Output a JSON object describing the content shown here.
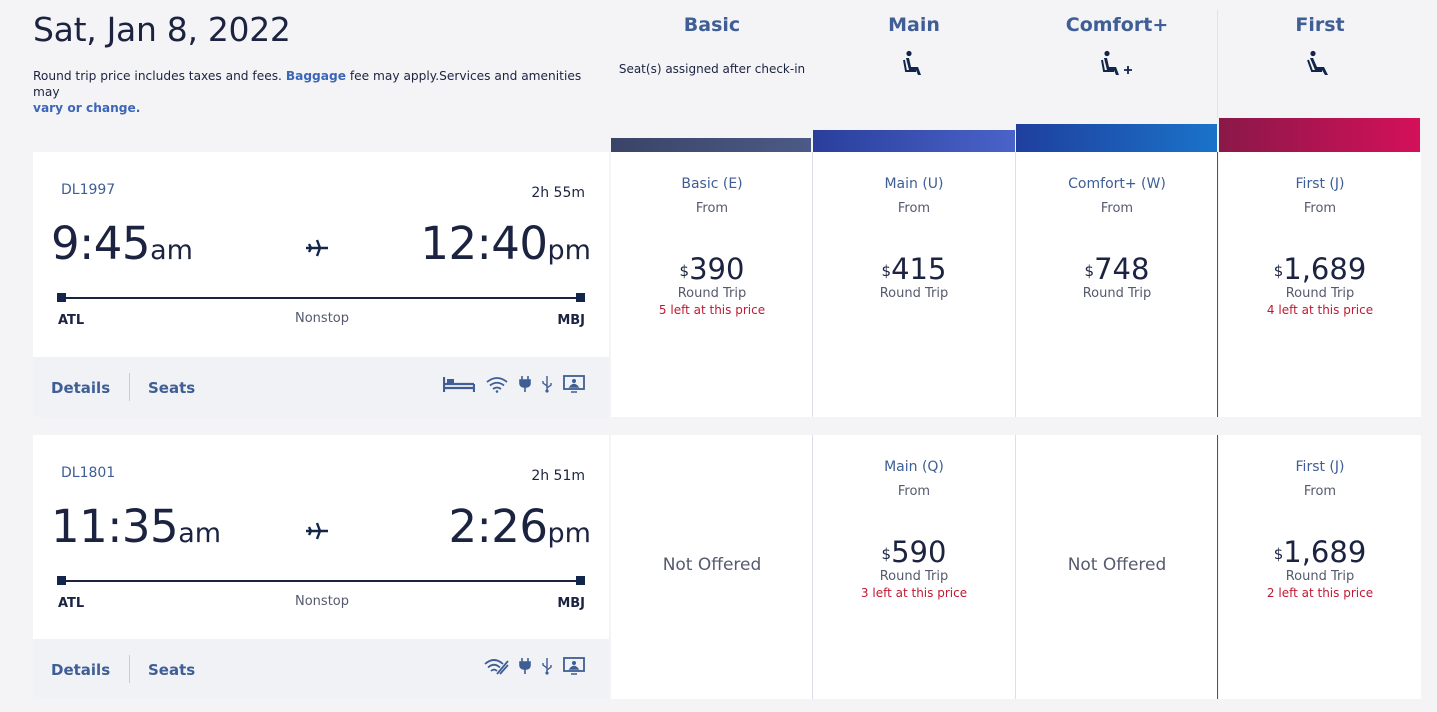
{
  "header": {
    "date": "Sat, Jan 8, 2022",
    "info_text_1": "Round trip price includes taxes and fees.",
    "baggage_link": "Baggage",
    "info_text_2": "fee may apply.",
    "info_text_3": "Services and amenities may",
    "vary_link": "vary or change."
  },
  "cabins": [
    {
      "name": "Basic",
      "sub": "Seat(s) assigned after check-in",
      "icon": "none"
    },
    {
      "name": "Main",
      "icon": "seat-icon"
    },
    {
      "name": "Comfort+",
      "icon": "seat-plus-icon"
    },
    {
      "name": "First",
      "icon": "seat-recline-icon"
    }
  ],
  "colors": {
    "basic_bar": "#3f4a6e",
    "main_bar": "#3552b8",
    "comfort_bar": "#1d5fbf",
    "first_bar": "#c4124f",
    "sold_out_text": "#c01933",
    "link": "#3c66b8"
  },
  "flights": [
    {
      "flight_number": "DL1997",
      "duration": "2h 55m",
      "dep_time": "9:45",
      "dep_ampm": "am",
      "arr_time": "12:40",
      "arr_ampm": "pm",
      "origin": "ATL",
      "destination": "MBJ",
      "stops": "Nonstop",
      "details_label": "Details",
      "seats_label": "Seats",
      "amenities": [
        "flat-bed-icon",
        "wifi-icon",
        "power-icon",
        "usb-icon",
        "entertainment-icon"
      ],
      "fares": [
        {
          "class": "Basic (E)",
          "from": "From",
          "currency": "$",
          "price": "390",
          "trip": "Round Trip",
          "left": "5 left at this price"
        },
        {
          "class": "Main (U)",
          "from": "From",
          "currency": "$",
          "price": "415",
          "trip": "Round Trip",
          "left": ""
        },
        {
          "class": "Comfort+ (W)",
          "from": "From",
          "currency": "$",
          "price": "748",
          "trip": "Round Trip",
          "left": ""
        },
        {
          "class": "First (J)",
          "from": "From",
          "currency": "$",
          "price": "1,689",
          "trip": "Round Trip",
          "left": "4 left at this price"
        }
      ]
    },
    {
      "flight_number": "DL1801",
      "duration": "2h 51m",
      "dep_time": "11:35",
      "dep_ampm": "am",
      "arr_time": "2:26",
      "arr_ampm": "pm",
      "origin": "ATL",
      "destination": "MBJ",
      "stops": "Nonstop",
      "details_label": "Details",
      "seats_label": "Seats",
      "amenities": [
        "wifi-fast-icon",
        "power-icon",
        "usb-icon",
        "entertainment-icon"
      ],
      "fares": [
        {
          "not_offered": "Not Offered"
        },
        {
          "class": "Main (Q)",
          "from": "From",
          "currency": "$",
          "price": "590",
          "trip": "Round Trip",
          "left": "3 left at this price"
        },
        {
          "not_offered": "Not Offered"
        },
        {
          "class": "First (J)",
          "from": "From",
          "currency": "$",
          "price": "1,689",
          "trip": "Round Trip",
          "left": "2 left at this price"
        }
      ]
    }
  ]
}
